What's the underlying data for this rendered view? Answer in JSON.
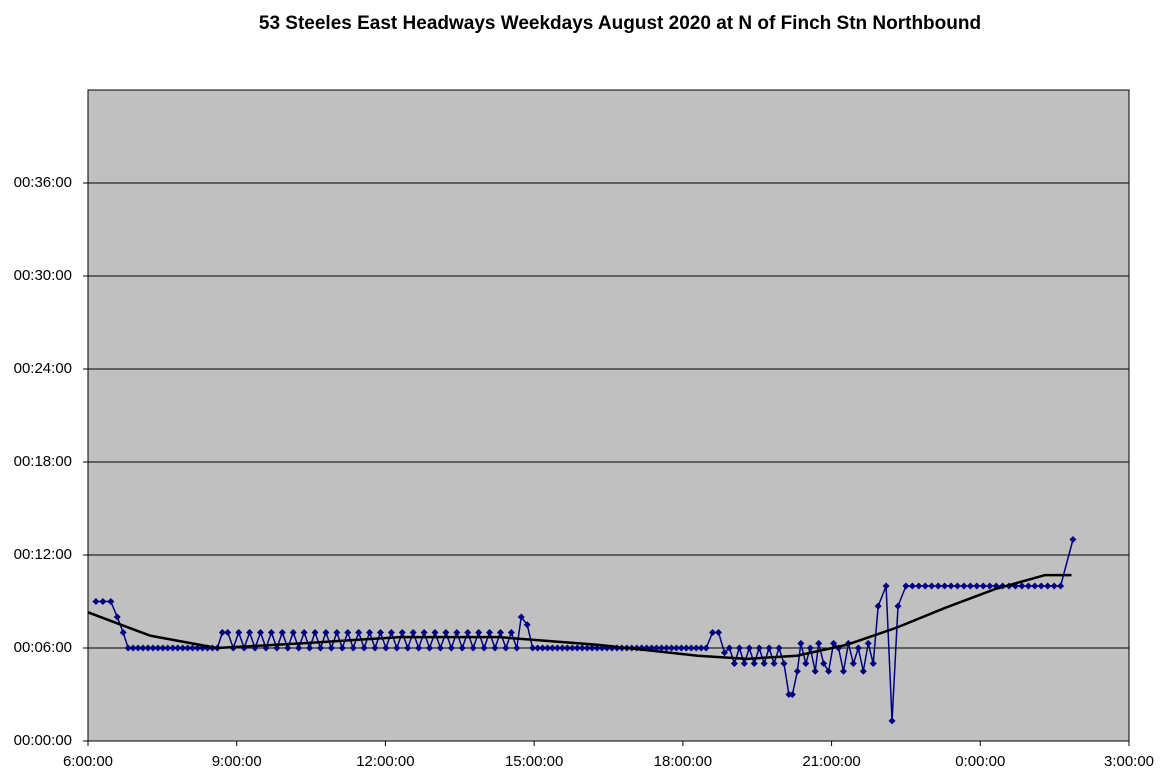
{
  "chart_data": {
    "type": "line",
    "title": "53 Steeles East Headways Weekdays August 2020 at N of Finch Stn Northbound",
    "xlim": [
      6,
      27
    ],
    "xticks": [
      {
        "value": 6,
        "label": "6:00:00"
      },
      {
        "value": 9,
        "label": "9:00:00"
      },
      {
        "value": 12,
        "label": "12:00:00"
      },
      {
        "value": 15,
        "label": "15:00:00"
      },
      {
        "value": 18,
        "label": "18:00:00"
      },
      {
        "value": 21,
        "label": "21:00:00"
      },
      {
        "value": 24,
        "label": "0:00:00"
      },
      {
        "value": 27,
        "label": "3:00:00"
      }
    ],
    "ylim": [
      0,
      42
    ],
    "yticks": [
      {
        "value": 0,
        "label": "00:00:00"
      },
      {
        "value": 6,
        "label": "00:06:00"
      },
      {
        "value": 12,
        "label": "00:12:00"
      },
      {
        "value": 18,
        "label": "00:18:00"
      },
      {
        "value": 24,
        "label": "00:24:00"
      },
      {
        "value": 30,
        "label": "00:30:00"
      },
      {
        "value": 36,
        "label": "00:36:00"
      }
    ],
    "grid": true,
    "background": "#c0c0c0",
    "series": [
      {
        "color": "#000080",
        "x": [
          6.16,
          6.3,
          6.46,
          6.59,
          6.71,
          6.81,
          6.91,
          7.01,
          7.11,
          7.21,
          7.31,
          7.41,
          7.51,
          7.61,
          7.71,
          7.81,
          7.91,
          8.01,
          8.11,
          8.21,
          8.31,
          8.41,
          8.51,
          8.61,
          8.71,
          8.82,
          8.93,
          9.04,
          9.15,
          9.26,
          9.37,
          9.48,
          9.59,
          9.7,
          9.81,
          9.92,
          10.03,
          10.14,
          10.25,
          10.36,
          10.47,
          10.58,
          10.69,
          10.8,
          10.91,
          11.02,
          11.13,
          11.24,
          11.35,
          11.46,
          11.57,
          11.68,
          11.79,
          11.9,
          12.01,
          12.12,
          12.23,
          12.34,
          12.45,
          12.56,
          12.67,
          12.78,
          12.89,
          13.0,
          13.11,
          13.22,
          13.33,
          13.44,
          13.55,
          13.66,
          13.77,
          13.88,
          13.99,
          14.1,
          14.21,
          14.32,
          14.43,
          14.54,
          14.65,
          14.74,
          14.86,
          14.97,
          15.07,
          15.17,
          15.27,
          15.37,
          15.47,
          15.57,
          15.67,
          15.77,
          15.87,
          15.97,
          16.07,
          16.17,
          16.27,
          16.37,
          16.47,
          16.57,
          16.67,
          16.77,
          16.87,
          16.97,
          17.07,
          17.17,
          17.27,
          17.37,
          17.47,
          17.57,
          17.67,
          17.77,
          17.87,
          17.97,
          18.07,
          18.17,
          18.27,
          18.37,
          18.47,
          18.6,
          18.72,
          18.84,
          18.94,
          19.04,
          19.14,
          19.24,
          19.34,
          19.44,
          19.54,
          19.64,
          19.74,
          19.84,
          19.94,
          20.04,
          20.14,
          20.21,
          20.31,
          20.38,
          20.48,
          20.57,
          20.67,
          20.74,
          20.84,
          20.94,
          21.04,
          21.14,
          21.24,
          21.34,
          21.44,
          21.54,
          21.64,
          21.74,
          21.84,
          21.94,
          22.1,
          22.22,
          22.34,
          22.5,
          22.63,
          22.76,
          22.89,
          23.02,
          23.15,
          23.28,
          23.41,
          23.54,
          23.67,
          23.8,
          23.93,
          24.06,
          24.19,
          24.32,
          24.45,
          24.58,
          24.71,
          24.84,
          24.97,
          25.1,
          25.23,
          25.36,
          25.49,
          25.62,
          25.87
        ],
        "values": [
          9,
          9,
          9,
          8,
          7,
          6,
          6,
          6,
          6,
          6,
          6,
          6,
          6,
          6,
          6,
          6,
          6,
          6,
          6,
          6,
          6,
          6,
          6,
          6,
          7,
          7,
          6,
          7,
          6,
          7,
          6,
          7,
          6,
          7,
          6,
          7,
          6,
          7,
          6,
          7,
          6,
          7,
          6,
          7,
          6,
          7,
          6,
          7,
          6,
          7,
          6,
          7,
          6,
          7,
          6,
          7,
          6,
          7,
          6,
          7,
          6,
          7,
          6,
          7,
          6,
          7,
          6,
          7,
          6,
          7,
          6,
          7,
          6,
          7,
          6,
          7,
          6,
          7,
          6,
          8,
          7.5,
          6,
          6,
          6,
          6,
          6,
          6,
          6,
          6,
          6,
          6,
          6,
          6,
          6,
          6,
          6,
          6,
          6,
          6,
          6,
          6,
          6,
          6,
          6,
          6,
          6,
          6,
          6,
          6,
          6,
          6,
          6,
          6,
          6,
          6,
          6,
          6,
          7,
          7,
          5.7,
          6,
          5,
          6,
          5,
          6,
          5,
          6,
          5,
          6,
          5,
          6,
          5,
          3,
          3,
          4.5,
          6.3,
          5,
          6,
          4.5,
          6.3,
          5,
          4.5,
          6.3,
          6,
          4.5,
          6.3,
          5,
          6,
          4.5,
          6.3,
          5,
          8.7,
          10,
          1.3,
          8.7,
          10,
          10,
          10,
          10,
          10,
          10,
          10,
          10,
          10,
          10,
          10,
          10,
          10,
          10,
          10,
          10,
          10,
          10,
          10,
          10,
          10,
          10,
          10,
          10,
          10,
          13
        ]
      }
    ],
    "trendline": {
      "color": "#000000",
      "x": [
        6,
        7.25,
        8.6,
        10.3,
        12.3,
        14.3,
        16.3,
        18.3,
        19.3,
        20.3,
        21.3,
        22.3,
        23.3,
        24.3,
        25.3,
        25.84
      ],
      "values": [
        8.3,
        6.8,
        6.0,
        6.3,
        6.7,
        6.7,
        6.2,
        5.5,
        5.3,
        5.5,
        6.2,
        7.3,
        8.6,
        9.8,
        10.7,
        10.7
      ]
    }
  }
}
